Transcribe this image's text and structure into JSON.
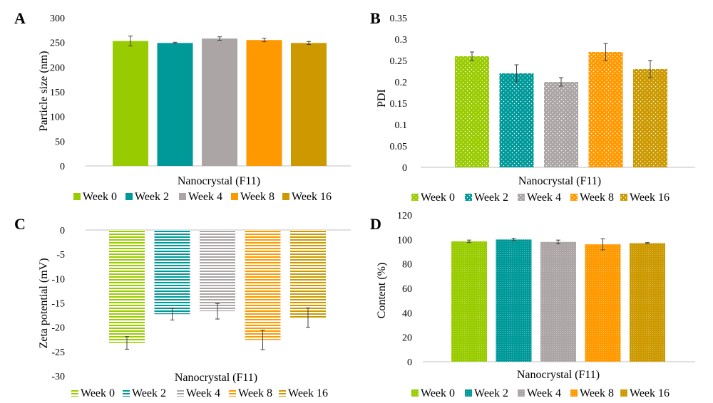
{
  "colors": {
    "week0": "#99cc00",
    "week2": "#009999",
    "week4": "#aba5a5",
    "week8": "#ff9900",
    "week16": "#cc9900",
    "axis": "#bfbfbf",
    "text": "#000000",
    "errorbar": "#404040"
  },
  "chart_data": [
    {
      "panel_label": "A",
      "type": "bar",
      "pattern": "solid",
      "categories": [
        "Nanocrystal (F11)"
      ],
      "xlabel": "Nanocrystal (F11)",
      "ylabel": "Particle size (nm)",
      "ylim": [
        0,
        300
      ],
      "yticks": [
        0,
        50,
        100,
        150,
        200,
        250,
        300
      ],
      "tick_labels": [
        "0",
        "50",
        "100",
        "150",
        "200",
        "250",
        "300"
      ],
      "series": [
        {
          "name": "Week 0",
          "values": [
            253
          ],
          "error": [
            10
          ]
        },
        {
          "name": "Week 2",
          "values": [
            249
          ],
          "error": [
            1.5
          ]
        },
        {
          "name": "Week 4",
          "values": [
            258
          ],
          "error": [
            3.5
          ]
        },
        {
          "name": "Week 8",
          "values": [
            255
          ],
          "error": [
            3.5
          ]
        },
        {
          "name": "Week 16",
          "values": [
            249
          ],
          "error": [
            3
          ]
        }
      ],
      "legend": "bottom"
    },
    {
      "panel_label": "B",
      "type": "bar",
      "pattern": "dots",
      "categories": [
        "Nanocrystal (F11)"
      ],
      "xlabel": "Nanocrystal (F11)",
      "ylabel": "PDI",
      "ylim": [
        0,
        0.35
      ],
      "yticks": [
        0,
        0.05,
        0.1,
        0.15,
        0.2,
        0.25,
        0.3,
        0.35
      ],
      "tick_labels": [
        "0",
        "0.05",
        "0.1",
        "0.15",
        "0.2",
        "0.25",
        "0.3",
        "0.35"
      ],
      "series": [
        {
          "name": "Week 0",
          "values": [
            0.26
          ],
          "error": [
            0.01
          ]
        },
        {
          "name": "Week 2",
          "values": [
            0.22
          ],
          "error": [
            0.02
          ]
        },
        {
          "name": "Week 4",
          "values": [
            0.2
          ],
          "error": [
            0.01
          ]
        },
        {
          "name": "Week 8",
          "values": [
            0.27
          ],
          "error": [
            0.02
          ]
        },
        {
          "name": "Week 16",
          "values": [
            0.23
          ],
          "error": [
            0.02
          ]
        }
      ],
      "legend": "bottom"
    },
    {
      "panel_label": "C",
      "type": "bar",
      "pattern": "hlines",
      "categories": [
        "Nanocrystal (F11)"
      ],
      "xlabel": "Nanocrystal (F11)",
      "ylabel": "Zeta potential (mV)",
      "ylim": [
        -30,
        0
      ],
      "yticks": [
        0,
        -5,
        -10,
        -15,
        -20,
        -25,
        -30
      ],
      "tick_labels": [
        "0",
        "-5",
        "-10",
        "-15",
        "-20",
        "-25",
        "-30"
      ],
      "series": [
        {
          "name": "Week 0",
          "values": [
            -23.2
          ],
          "error": [
            1.3
          ]
        },
        {
          "name": "Week 2",
          "values": [
            -17.3
          ],
          "error": [
            1.2
          ]
        },
        {
          "name": "Week 4",
          "values": [
            -16.7
          ],
          "error": [
            1.6
          ]
        },
        {
          "name": "Week 8",
          "values": [
            -22.6
          ],
          "error": [
            2
          ]
        },
        {
          "name": "Week 16",
          "values": [
            -18.0
          ],
          "error": [
            2
          ]
        }
      ],
      "legend": "bottom"
    },
    {
      "panel_label": "D",
      "type": "bar",
      "pattern": "fine",
      "categories": [
        "Nanocrystal (F11)"
      ],
      "xlabel": "Nanocrystal (F11)",
      "ylabel": "Content (%)",
      "ylim": [
        0,
        120
      ],
      "yticks": [
        0,
        20,
        40,
        60,
        80,
        100,
        120
      ],
      "tick_labels": [
        "0",
        "20",
        "40",
        "60",
        "80",
        "100",
        "120"
      ],
      "series": [
        {
          "name": "Week 0",
          "values": [
            98.5
          ],
          "error": [
            1
          ]
        },
        {
          "name": "Week 2",
          "values": [
            100
          ],
          "error": [
            1
          ]
        },
        {
          "name": "Week 4",
          "values": [
            98
          ],
          "error": [
            1.5
          ]
        },
        {
          "name": "Week 8",
          "values": [
            96
          ],
          "error": [
            4.5
          ]
        },
        {
          "name": "Week 16",
          "values": [
            97
          ],
          "error": [
            0.5
          ]
        }
      ],
      "legend": "bottom"
    }
  ]
}
